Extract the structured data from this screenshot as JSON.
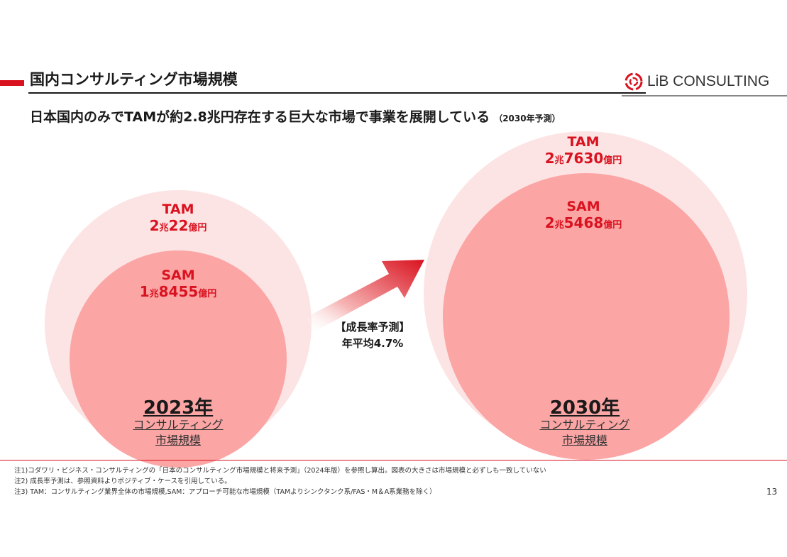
{
  "header": {
    "title": "国内コンサルティング市場規模",
    "logo_text": "LiB CONSULTING",
    "subtitle": "日本国内のみでTAMが約2.8兆円存在する巨大な市場で事業を展開している",
    "subtitle_note": "（2030年予測）"
  },
  "left": {
    "tam_label": "TAM",
    "tam_value": [
      "2",
      "兆",
      "22",
      "億円"
    ],
    "sam_label": "SAM",
    "sam_value": [
      "1",
      "兆",
      "8455",
      "億円"
    ],
    "year": "2023年",
    "market_line1": "コンサルティング",
    "market_line2": "市場規模"
  },
  "right": {
    "tam_label": "TAM",
    "tam_value": [
      "2",
      "兆",
      "7630",
      "億円"
    ],
    "sam_label": "SAM",
    "sam_value": [
      "2",
      "兆",
      "5468",
      "億円"
    ],
    "year": "2030年",
    "market_line1": "コンサルティング",
    "market_line2": "市場規模"
  },
  "growth": {
    "line1": "【成長率予測】",
    "line2": "年平均4.7%"
  },
  "notes": [
    "注1)コダワリ・ビジネス・コンサルティングの「日本のコンサルティング市場規模と将来予測」（2024年版）を参照し算出。図表の大きさは市場規模と必ずしも一致していない",
    "注2) 成長率予測は、参照資料よりポジティブ・ケースを引用している。",
    "注3) TAM：コンサルティング業界全体の市場規模,SAM：アプローチ可能な市場規模（TAMよりシンクタンク系/FAS・M＆A系業務を除く）"
  ],
  "page_number": "13",
  "colors": {
    "accent": "#d9121f",
    "tam_fill": "#fde4e4",
    "sam_fill": "#fba5a5"
  }
}
